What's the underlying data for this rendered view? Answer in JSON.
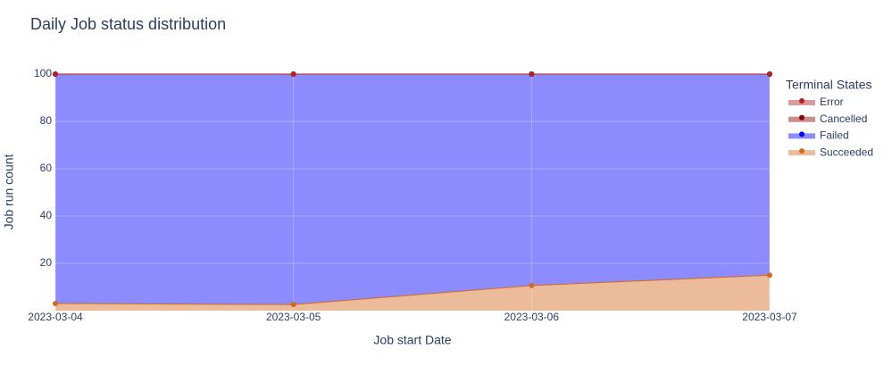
{
  "chart_data": {
    "type": "stacked_area",
    "title": "Daily Job status distribution",
    "x_label": "Job start Date",
    "y_label": "Job run count",
    "legend_title": "Terminal States",
    "x": [
      "2023-03-04",
      "2023-03-05",
      "2023-03-06",
      "2023-03-07"
    ],
    "xlim": [
      "2023-03-04",
      "2023-03-07"
    ],
    "xticks": [
      "2023-03-04",
      "2023-03-05",
      "2023-03-06",
      "2023-03-07"
    ],
    "ylim": [
      0,
      100
    ],
    "yticks": [
      20,
      40,
      60,
      80,
      100
    ],
    "grid": true,
    "legend_position": "right",
    "series": [
      {
        "name": "Succeeded",
        "color": "#d2691e",
        "values": [
          3,
          2.6,
          10.6,
          15
        ]
      },
      {
        "name": "Failed",
        "color": "#0000ff",
        "values": [
          97,
          97.4,
          89.4,
          85
        ]
      },
      {
        "name": "Cancelled",
        "color": "#8b0000",
        "values": [
          0,
          0,
          0,
          0
        ]
      },
      {
        "name": "Error",
        "color": "#b22222",
        "values": [
          0,
          0,
          0,
          0
        ]
      }
    ]
  }
}
